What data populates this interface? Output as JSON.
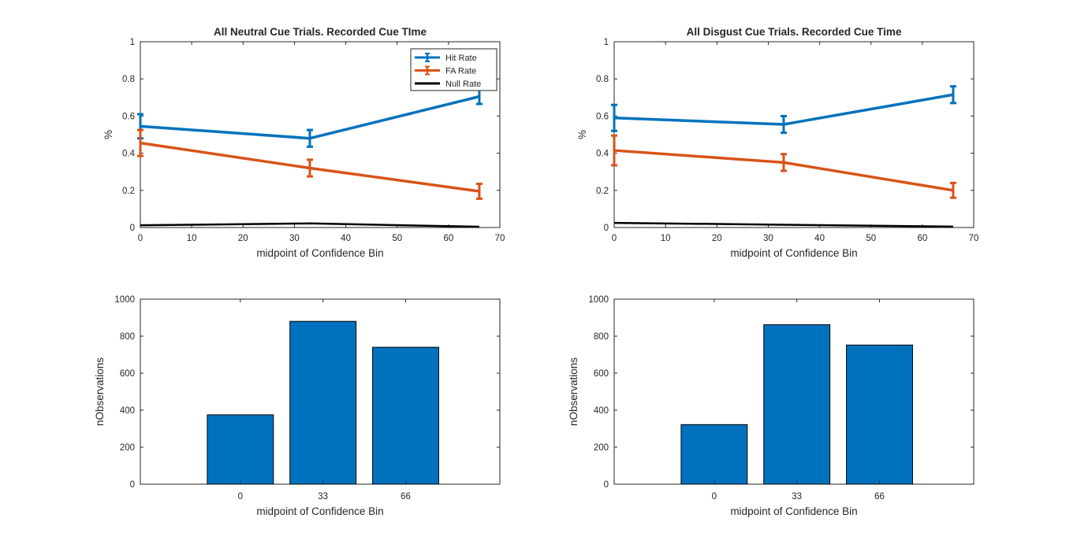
{
  "chart_data": [
    {
      "type": "line",
      "title": "All Neutral Cue Trials. Recorded Cue TIme",
      "xlabel": "midpoint of Confidence Bin",
      "ylabel": "%",
      "xlim": [
        0,
        70
      ],
      "ylim": [
        0,
        1
      ],
      "xticks": [
        "0",
        "10",
        "20",
        "30",
        "40",
        "50",
        "60",
        "70"
      ],
      "yticks": [
        "0",
        "0.2",
        "0.4",
        "0.6",
        "0.8",
        "1"
      ],
      "legend_position": "top-right",
      "x": [
        0,
        33,
        66
      ],
      "series": [
        {
          "name": "Hit Rate",
          "color": "#0072BD",
          "values": [
            0.545,
            0.48,
            0.705
          ],
          "errors": [
            0.065,
            0.045,
            0.04
          ]
        },
        {
          "name": "FA Rate",
          "color": "#D95319",
          "values": [
            0.455,
            0.32,
            0.195
          ],
          "errors": [
            0.07,
            0.045,
            0.04
          ]
        },
        {
          "name": "Null Rate",
          "color": "#000000",
          "values": [
            0.012,
            0.022,
            0.004
          ],
          "errors": null
        }
      ]
    },
    {
      "type": "line",
      "title": "All Disgust Cue Trials. Recorded Cue Time",
      "xlabel": "midpoint of Confidence Bin",
      "ylabel": "%",
      "xlim": [
        0,
        70
      ],
      "ylim": [
        0,
        1
      ],
      "xticks": [
        "0",
        "10",
        "20",
        "30",
        "40",
        "50",
        "60",
        "70"
      ],
      "yticks": [
        "0",
        "0.2",
        "0.4",
        "0.6",
        "0.8",
        "1"
      ],
      "x": [
        0,
        33,
        66
      ],
      "series": [
        {
          "color": "#0072BD",
          "values": [
            0.59,
            0.555,
            0.715
          ],
          "errors": [
            0.07,
            0.045,
            0.045
          ]
        },
        {
          "color": "#D95319",
          "values": [
            0.415,
            0.35,
            0.2
          ],
          "errors": [
            0.08,
            0.045,
            0.04
          ]
        },
        {
          "color": "#000000",
          "values": [
            0.025,
            0.015,
            0.005
          ],
          "errors": null
        }
      ]
    },
    {
      "type": "bar",
      "title": "",
      "xlabel": "midpoint of Confidence Bin",
      "ylabel": "nObservations",
      "categories": [
        "0",
        "33",
        "66"
      ],
      "values": [
        375,
        880,
        740
      ],
      "ylim": [
        0,
        1000
      ],
      "yticks": [
        "0",
        "200",
        "400",
        "600",
        "800",
        "1000"
      ],
      "bar_color": "#0072BD"
    },
    {
      "type": "bar",
      "title": "",
      "xlabel": "midpoint of Confidence Bin",
      "ylabel": "nObservations",
      "categories": [
        "0",
        "33",
        "66"
      ],
      "values": [
        322,
        862,
        752
      ],
      "ylim": [
        0,
        1000
      ],
      "yticks": [
        "0",
        "200",
        "400",
        "600",
        "800",
        "1000"
      ],
      "bar_color": "#0072BD"
    }
  ]
}
